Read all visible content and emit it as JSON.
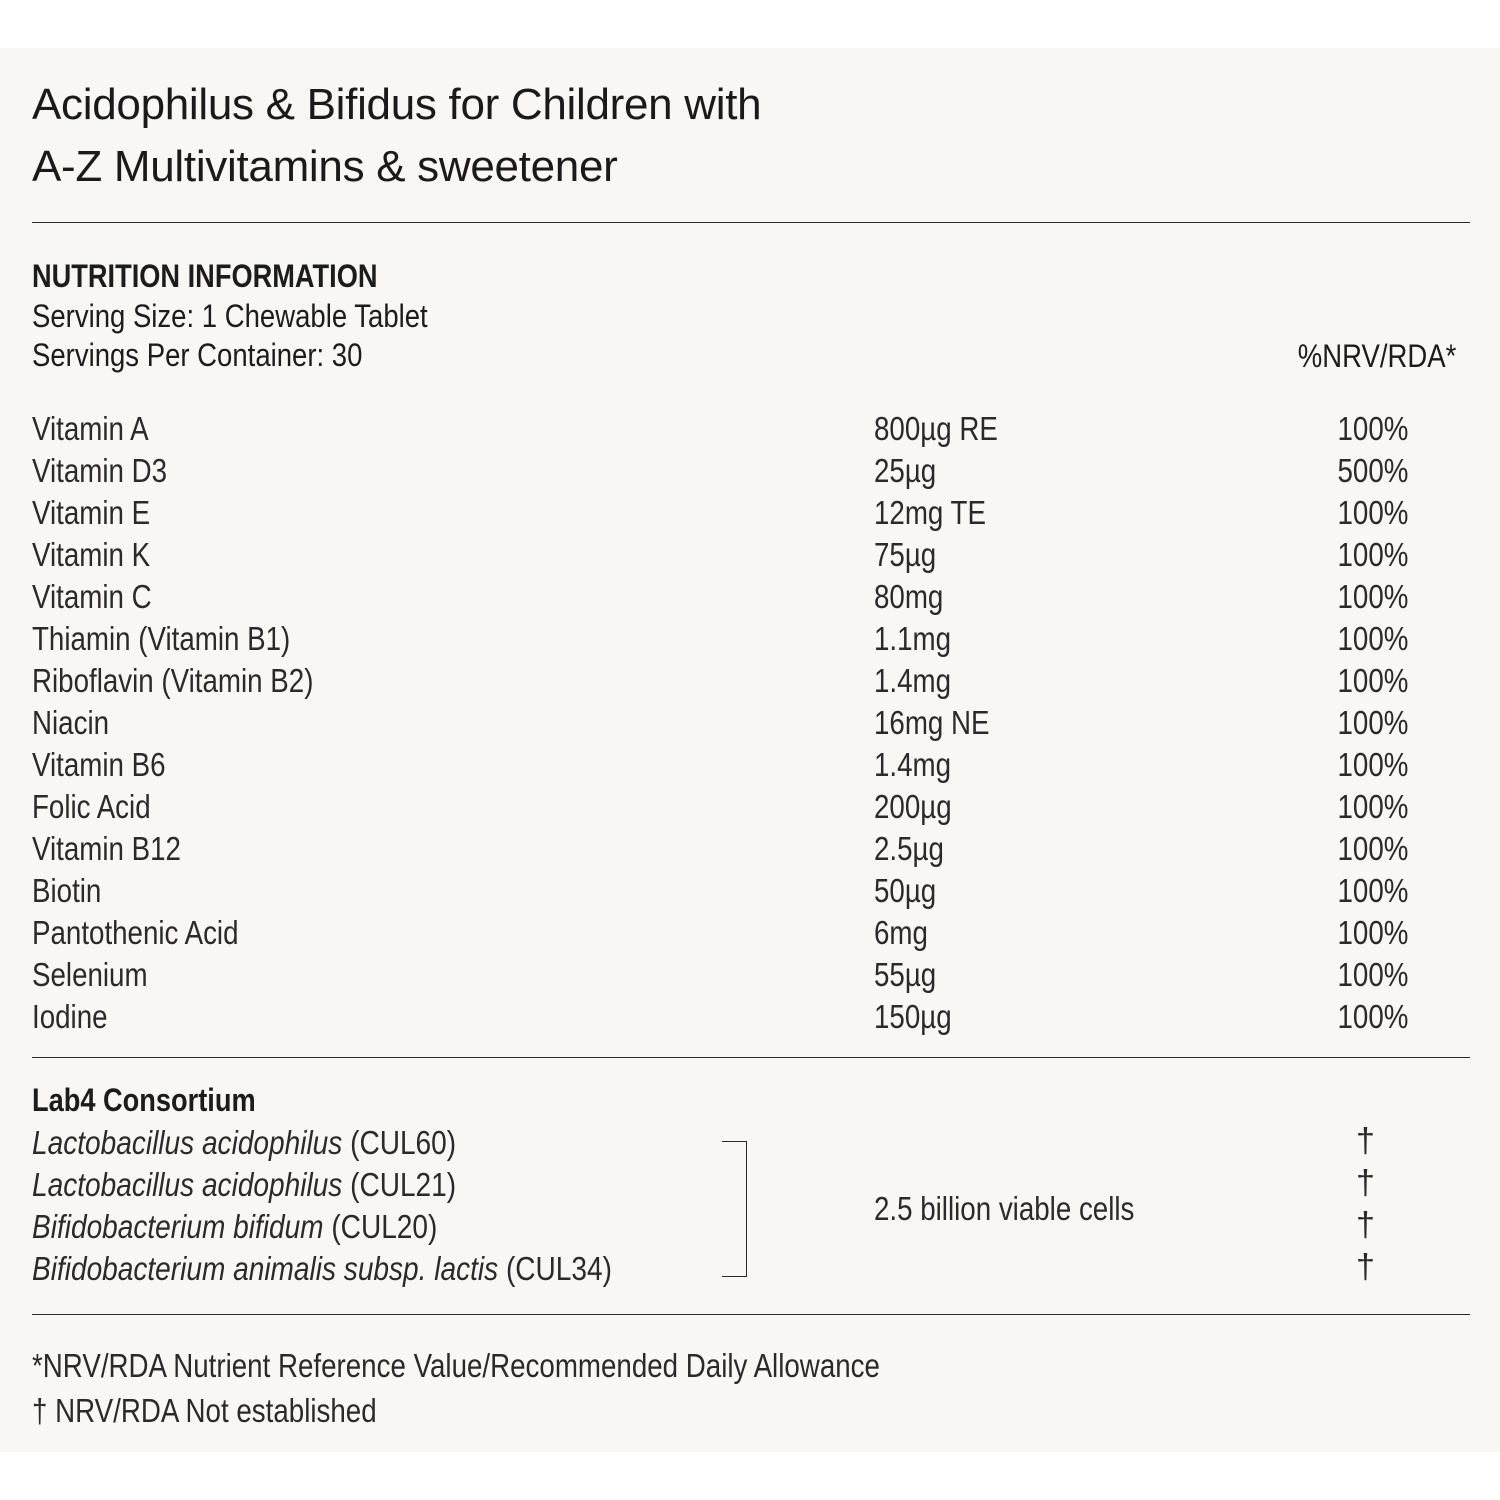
{
  "title": {
    "line1": "Acidophilus & Bifidus for Children with",
    "line2": "A-Z Multivitamins & sweetener"
  },
  "nutrition": {
    "heading": "NUTRITION INFORMATION",
    "serving_size": "Serving Size: 1 Chewable Tablet",
    "servings_per_container": "Servings Per Container: 30",
    "nrv_header": "%NRV/RDA*",
    "rows": [
      {
        "name": "Vitamin A",
        "amount": "800µg RE",
        "nrv": "100%"
      },
      {
        "name": "Vitamin D3",
        "amount": "25µg",
        "nrv": "500%"
      },
      {
        "name": "Vitamin E",
        "amount": "12mg TE",
        "nrv": "100%"
      },
      {
        "name": "Vitamin K",
        "amount": "75µg",
        "nrv": "100%"
      },
      {
        "name": "Vitamin C",
        "amount": "80mg",
        "nrv": "100%"
      },
      {
        "name": "Thiamin (Vitamin B1)",
        "amount": "1.1mg",
        "nrv": "100%"
      },
      {
        "name": "Riboflavin (Vitamin B2)",
        "amount": "1.4mg",
        "nrv": "100%"
      },
      {
        "name": "Niacin",
        "amount": "16mg NE",
        "nrv": "100%"
      },
      {
        "name": "Vitamin B6",
        "amount": "1.4mg",
        "nrv": "100%"
      },
      {
        "name": "Folic Acid",
        "amount": "200µg",
        "nrv": "100%"
      },
      {
        "name": "Vitamin B12",
        "amount": "2.5µg",
        "nrv": "100%"
      },
      {
        "name": "Biotin",
        "amount": "50µg",
        "nrv": "100%"
      },
      {
        "name": "Pantothenic Acid",
        "amount": "6mg",
        "nrv": "100%"
      },
      {
        "name": "Selenium",
        "amount": "55µg",
        "nrv": "100%"
      },
      {
        "name": "Iodine",
        "amount": "150µg",
        "nrv": "100%"
      }
    ]
  },
  "consortium": {
    "title": "Lab4 Consortium",
    "strains": [
      {
        "species": "Lactobacillus acidophilus",
        "code": "(CUL60)",
        "nrv": "†"
      },
      {
        "species": "Lactobacillus acidophilus",
        "code": "(CUL21)",
        "nrv": "†"
      },
      {
        "species": "Bifidobacterium bifidum",
        "code": "(CUL20)",
        "nrv": "†"
      },
      {
        "species": "Bifidobacterium animalis subsp. lactis",
        "code": "(CUL34)",
        "nrv": "†"
      }
    ],
    "amount": "2.5 billion viable cells"
  },
  "footnotes": {
    "nrv_def": "*NRV/RDA Nutrient Reference Value/Recommended Daily Allowance",
    "not_established": "† NRV/RDA Not established"
  },
  "colors": {
    "paper": "#f8f7f3",
    "text": "#1c1c1c"
  }
}
